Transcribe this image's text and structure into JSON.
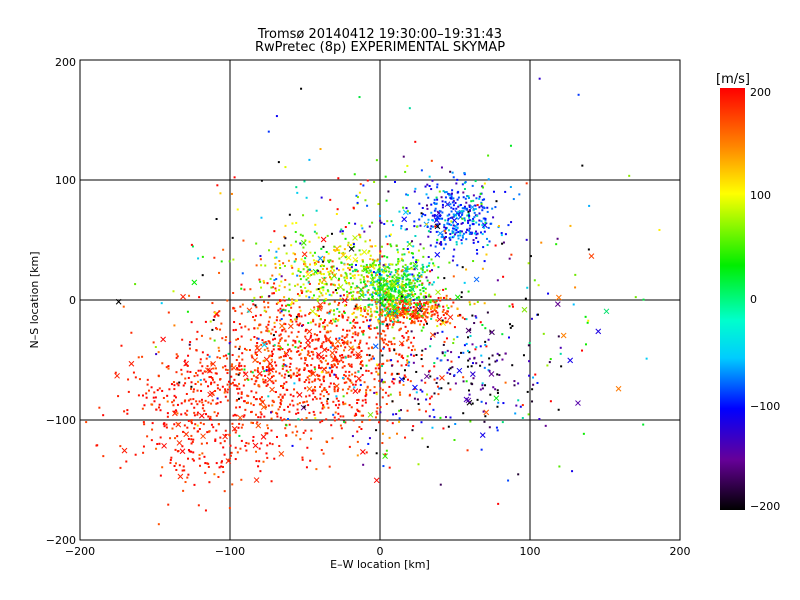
{
  "chart_data": {
    "type": "scatter",
    "title": "Tromsø 20140412 19:30:00–19:31:43",
    "subtitle": "RwPretec (8p) EXPERIMENTAL SKYMAP",
    "xlabel": "E–W location [km]",
    "ylabel": "N–S location [km]",
    "xlim": [
      -200,
      200
    ],
    "ylim": [
      -200,
      200
    ],
    "x_ticks": [
      "−200",
      "−100",
      "0",
      "100",
      "200"
    ],
    "y_ticks": [
      "−200",
      "−100",
      "0",
      "100",
      "200"
    ],
    "grid": true,
    "colorbar": {
      "label": "[m/s]",
      "range": [
        -200,
        200
      ],
      "ticks": [
        "200",
        "100",
        "0",
        "−100",
        "−200"
      ],
      "colormap": "rainbow (black → purple → blue → cyan → green → yellow → red)"
    },
    "markers": {
      "dot": "small point",
      "cross": "x"
    },
    "clusters": [
      {
        "center": [
          -45,
          -50
        ],
        "spread": [
          70,
          55
        ],
        "velocity": 185,
        "velocity_spread": 15
      },
      {
        "center": [
          -120,
          -100
        ],
        "spread": [
          45,
          50
        ],
        "velocity": 190,
        "velocity_spread": 12
      },
      {
        "center": [
          20,
          -10
        ],
        "spread": [
          25,
          10
        ],
        "velocity": 170,
        "velocity_spread": 25
      },
      {
        "center": [
          10,
          10
        ],
        "spread": [
          20,
          20
        ],
        "velocity": 10,
        "velocity_spread": 40
      },
      {
        "center": [
          50,
          70
        ],
        "spread": [
          25,
          25
        ],
        "velocity": -85,
        "velocity_spread": 30
      },
      {
        "center": [
          -30,
          20
        ],
        "spread": [
          40,
          30
        ],
        "velocity": 80,
        "velocity_spread": 50
      },
      {
        "center": [
          60,
          -60
        ],
        "spread": [
          50,
          50
        ],
        "velocity": -150,
        "velocity_spread": 60
      },
      {
        "center": [
          0,
          0
        ],
        "spread": [
          120,
          110
        ],
        "velocity": 0,
        "velocity_spread": 150
      }
    ]
  }
}
